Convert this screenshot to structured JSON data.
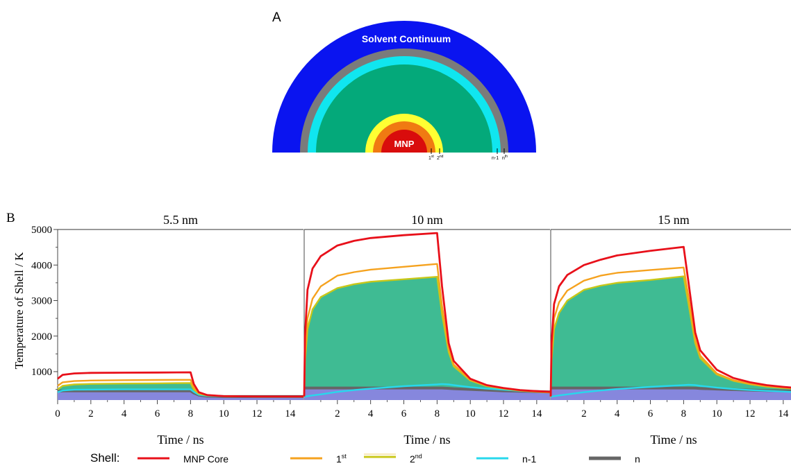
{
  "panel_a": {
    "label": "A",
    "solvent_label": "Solvent Continuum",
    "core_label": "MNP",
    "shell_marks": [
      "1",
      "st",
      "2",
      "nd",
      "n-1",
      "n",
      "th"
    ],
    "colors": {
      "solvent": "#0a14f0",
      "outer_gray": "#7b7b7b",
      "cyan": "#10e6ef",
      "middle": "#04a97a",
      "yellow": "#ffff33",
      "orange": "#f07a12",
      "core": "#d90c0c"
    }
  },
  "panel_b": {
    "label": "B",
    "ylabel": "Temperature of Shell / K",
    "xlabel": "Time / ns"
  },
  "legend": {
    "title": "Shell:",
    "items": [
      {
        "label": "MNP Core",
        "sup": "",
        "color": "#e8101a"
      },
      {
        "label": "1",
        "sup": "st",
        "color": "#f5a21e"
      },
      {
        "label": "2",
        "sup": "nd",
        "color": "#c9c718"
      },
      {
        "label": "n-1",
        "sup": "",
        "color": "#27d8ec"
      },
      {
        "label": "n",
        "sup": "",
        "color": "#666666"
      }
    ]
  },
  "chart_data": [
    {
      "type": "line",
      "title": "5.5 nm",
      "xlabel": "Time / ns",
      "ylabel": "Temperature of Shell / K",
      "xlim": [
        0,
        14.8
      ],
      "ylim": [
        200,
        5000
      ],
      "xticks": [
        0,
        2,
        4,
        6,
        8,
        10,
        12,
        14
      ],
      "yticks": [
        1000,
        2000,
        3000,
        4000,
        5000
      ],
      "x": [
        0,
        0.3,
        1,
        2,
        4,
        6,
        8,
        8.2,
        8.5,
        9,
        10,
        12,
        14,
        14.8
      ],
      "series": [
        {
          "name": "MNP Core",
          "color": "#e8101a",
          "values": [
            800,
            910,
            950,
            965,
            970,
            975,
            980,
            650,
            420,
            340,
            310,
            300,
            300,
            300
          ]
        },
        {
          "name": "1st",
          "color": "#f5a21e",
          "values": [
            600,
            700,
            735,
            750,
            760,
            765,
            770,
            550,
            400,
            340,
            310,
            300,
            300,
            300
          ]
        },
        {
          "name": "2nd",
          "color": "#c9c718",
          "values": [
            500,
            600,
            640,
            655,
            665,
            670,
            680,
            500,
            380,
            330,
            310,
            300,
            300,
            300
          ],
          "fill": true
        },
        {
          "name": "n-1",
          "color": "#27d8ec",
          "values": [
            420,
            470,
            490,
            495,
            500,
            500,
            500,
            430,
            350,
            320,
            305,
            300,
            300,
            300
          ]
        },
        {
          "name": "n",
          "color": "#666666",
          "values": [
            450,
            460,
            460,
            460,
            460,
            460,
            460,
            400,
            340,
            310,
            300,
            300,
            300,
            300
          ]
        }
      ]
    },
    {
      "type": "line",
      "title": "10 nm",
      "xlabel": "Time / ns",
      "xlim": [
        0,
        14.8
      ],
      "ylim": [
        200,
        5000
      ],
      "xticks": [
        2,
        4,
        6,
        8,
        10,
        12,
        14
      ],
      "x": [
        0,
        0.05,
        0.2,
        0.5,
        1,
        2,
        3,
        4,
        6,
        8,
        8.3,
        8.7,
        9,
        10,
        11,
        12,
        13,
        14,
        14.8
      ],
      "series": [
        {
          "name": "MNP Core",
          "color": "#e8101a",
          "values": [
            300,
            2000,
            3300,
            3900,
            4250,
            4550,
            4680,
            4760,
            4840,
            4900,
            3400,
            1800,
            1300,
            800,
            620,
            540,
            480,
            450,
            430
          ]
        },
        {
          "name": "1st",
          "color": "#f5a21e",
          "values": [
            300,
            1500,
            2500,
            3050,
            3400,
            3700,
            3800,
            3870,
            3950,
            4030,
            2850,
            1650,
            1200,
            770,
            600,
            530,
            470,
            440,
            420
          ]
        },
        {
          "name": "2nd",
          "color": "#c9c718",
          "values": [
            300,
            1300,
            2200,
            2750,
            3100,
            3350,
            3460,
            3530,
            3600,
            3670,
            2620,
            1550,
            1150,
            750,
            590,
            520,
            465,
            435,
            415
          ],
          "fill": true
        },
        {
          "name": "n-1",
          "color": "#27d8ec",
          "values": [
            300,
            300,
            310,
            330,
            360,
            430,
            480,
            520,
            590,
            640,
            650,
            640,
            620,
            560,
            520,
            490,
            460,
            440,
            420
          ]
        },
        {
          "name": "n",
          "color": "#666666",
          "values": [
            540,
            540,
            540,
            540,
            540,
            540,
            540,
            540,
            540,
            540,
            540,
            530,
            520,
            500,
            480,
            460,
            450,
            440,
            430
          ]
        }
      ]
    },
    {
      "type": "line",
      "title": "15 nm",
      "xlabel": "Time / ns",
      "xlim": [
        0,
        14.8
      ],
      "ylim": [
        200,
        5000
      ],
      "xticks": [
        2,
        4,
        6,
        8,
        10,
        12,
        14
      ],
      "x": [
        0,
        0.05,
        0.2,
        0.5,
        1,
        2,
        3,
        4,
        6,
        8,
        8.3,
        8.7,
        9,
        10,
        11,
        12,
        13,
        14,
        14.8
      ],
      "series": [
        {
          "name": "MNP Core",
          "color": "#e8101a",
          "values": [
            300,
            1800,
            2900,
            3400,
            3720,
            4000,
            4150,
            4270,
            4400,
            4510,
            3500,
            2100,
            1600,
            1050,
            820,
            700,
            620,
            570,
            540
          ]
        },
        {
          "name": "1st",
          "color": "#f5a21e",
          "values": [
            300,
            1500,
            2500,
            2950,
            3280,
            3560,
            3700,
            3780,
            3860,
            3930,
            3100,
            1900,
            1450,
            950,
            760,
            660,
            590,
            550,
            520
          ]
        },
        {
          "name": "2nd",
          "color": "#c9c718",
          "values": [
            300,
            1300,
            2200,
            2650,
            3000,
            3300,
            3420,
            3500,
            3580,
            3680,
            2900,
            1800,
            1380,
            920,
            740,
            645,
            580,
            540,
            515
          ],
          "fill": true
        },
        {
          "name": "n-1",
          "color": "#27d8ec",
          "values": [
            300,
            300,
            310,
            330,
            360,
            420,
            470,
            510,
            570,
            620,
            630,
            620,
            600,
            550,
            510,
            480,
            460,
            440,
            420
          ]
        },
        {
          "name": "n",
          "color": "#666666",
          "values": [
            540,
            540,
            540,
            540,
            540,
            540,
            540,
            540,
            540,
            540,
            540,
            535,
            525,
            510,
            495,
            480,
            470,
            460,
            450
          ]
        }
      ]
    }
  ]
}
